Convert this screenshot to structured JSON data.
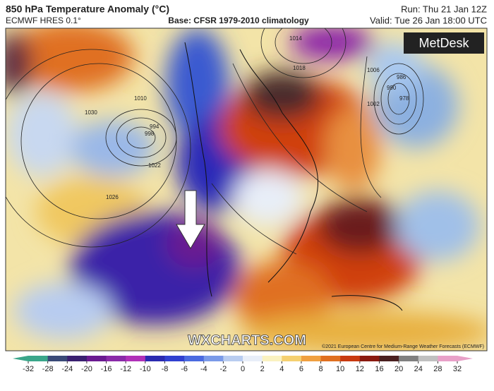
{
  "header": {
    "title": "850 hPa Temperature Anomaly (°C)",
    "model": "ECMWF HRES 0.1°",
    "base": "Base: CFSR 1979-2010 climatology",
    "run": "Run: Thu 21 Jan 12Z",
    "valid": "Valid: Tue 26 Jan 18:00 UTC"
  },
  "map": {
    "logo": "MetDesk",
    "watermark": "WXCHARTS.COM",
    "copyright": "©2021 European Centre for Medium-Range Weather Forecasts (ECMWF)",
    "isobar_labels": [
      "1014",
      "1018",
      "1006",
      "1002",
      "990",
      "986",
      "978",
      "994",
      "998",
      "1010",
      "1030",
      "1026",
      "1022"
    ]
  },
  "colorbar": {
    "ticks": [
      -32,
      -28,
      -24,
      -20,
      -16,
      -12,
      -10,
      -8,
      -6,
      -4,
      -2,
      0,
      2,
      4,
      6,
      8,
      10,
      12,
      16,
      20,
      24,
      28,
      32
    ],
    "colors": [
      "#3aa68a",
      "#3a4a78",
      "#3a2070",
      "#6a1a90",
      "#8a2aa8",
      "#b030b8",
      "#2a2ab0",
      "#3040d0",
      "#4a6ae0",
      "#7a9ae8",
      "#b8ccf0",
      "#e8eef8",
      "#faf2c0",
      "#f5d070",
      "#f0a040",
      "#e07020",
      "#c83a10",
      "#8a1a10",
      "#4a2020",
      "#808080",
      "#c0c0c0",
      "#e8a0c8"
    ]
  }
}
